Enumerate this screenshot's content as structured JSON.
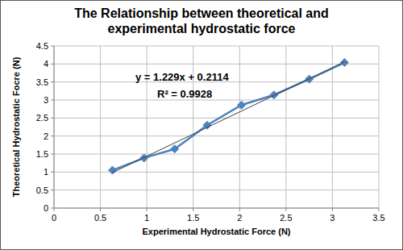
{
  "chart_data": {
    "type": "line",
    "title": "The Relationship between theoretical and experimental hydrostatic force",
    "x_label": "Experimental Hydrostatic Force (N)",
    "y_label": "Theoretical Hydrostatic Focre (N)",
    "annotations": [
      "y = 1.229x + 0.2114",
      "R² = 0.9928"
    ],
    "x": [
      0.63,
      0.97,
      1.3,
      1.65,
      2.02,
      2.37,
      2.75,
      3.13
    ],
    "series": [
      {
        "values": [
          1.05,
          1.39,
          1.64,
          2.3,
          2.86,
          3.14,
          3.58,
          4.04
        ],
        "color": "#4f81bd",
        "marker": "diamond",
        "line_style": "solid"
      },
      {
        "x": [
          0.63,
          3.13
        ],
        "values": [
          0.985,
          4.058
        ],
        "color": "#404040",
        "marker": "none",
        "line_style": "solid"
      }
    ],
    "xlim": [
      0,
      3.5
    ],
    "xticks": [
      0,
      0.5,
      1,
      1.5,
      2,
      2.5,
      3,
      3.5
    ],
    "ylim": [
      0,
      4.5
    ],
    "yticks": [
      0,
      0.5,
      1,
      1.5,
      2,
      2.5,
      3,
      3.5,
      4,
      4.5
    ],
    "grid": true
  }
}
